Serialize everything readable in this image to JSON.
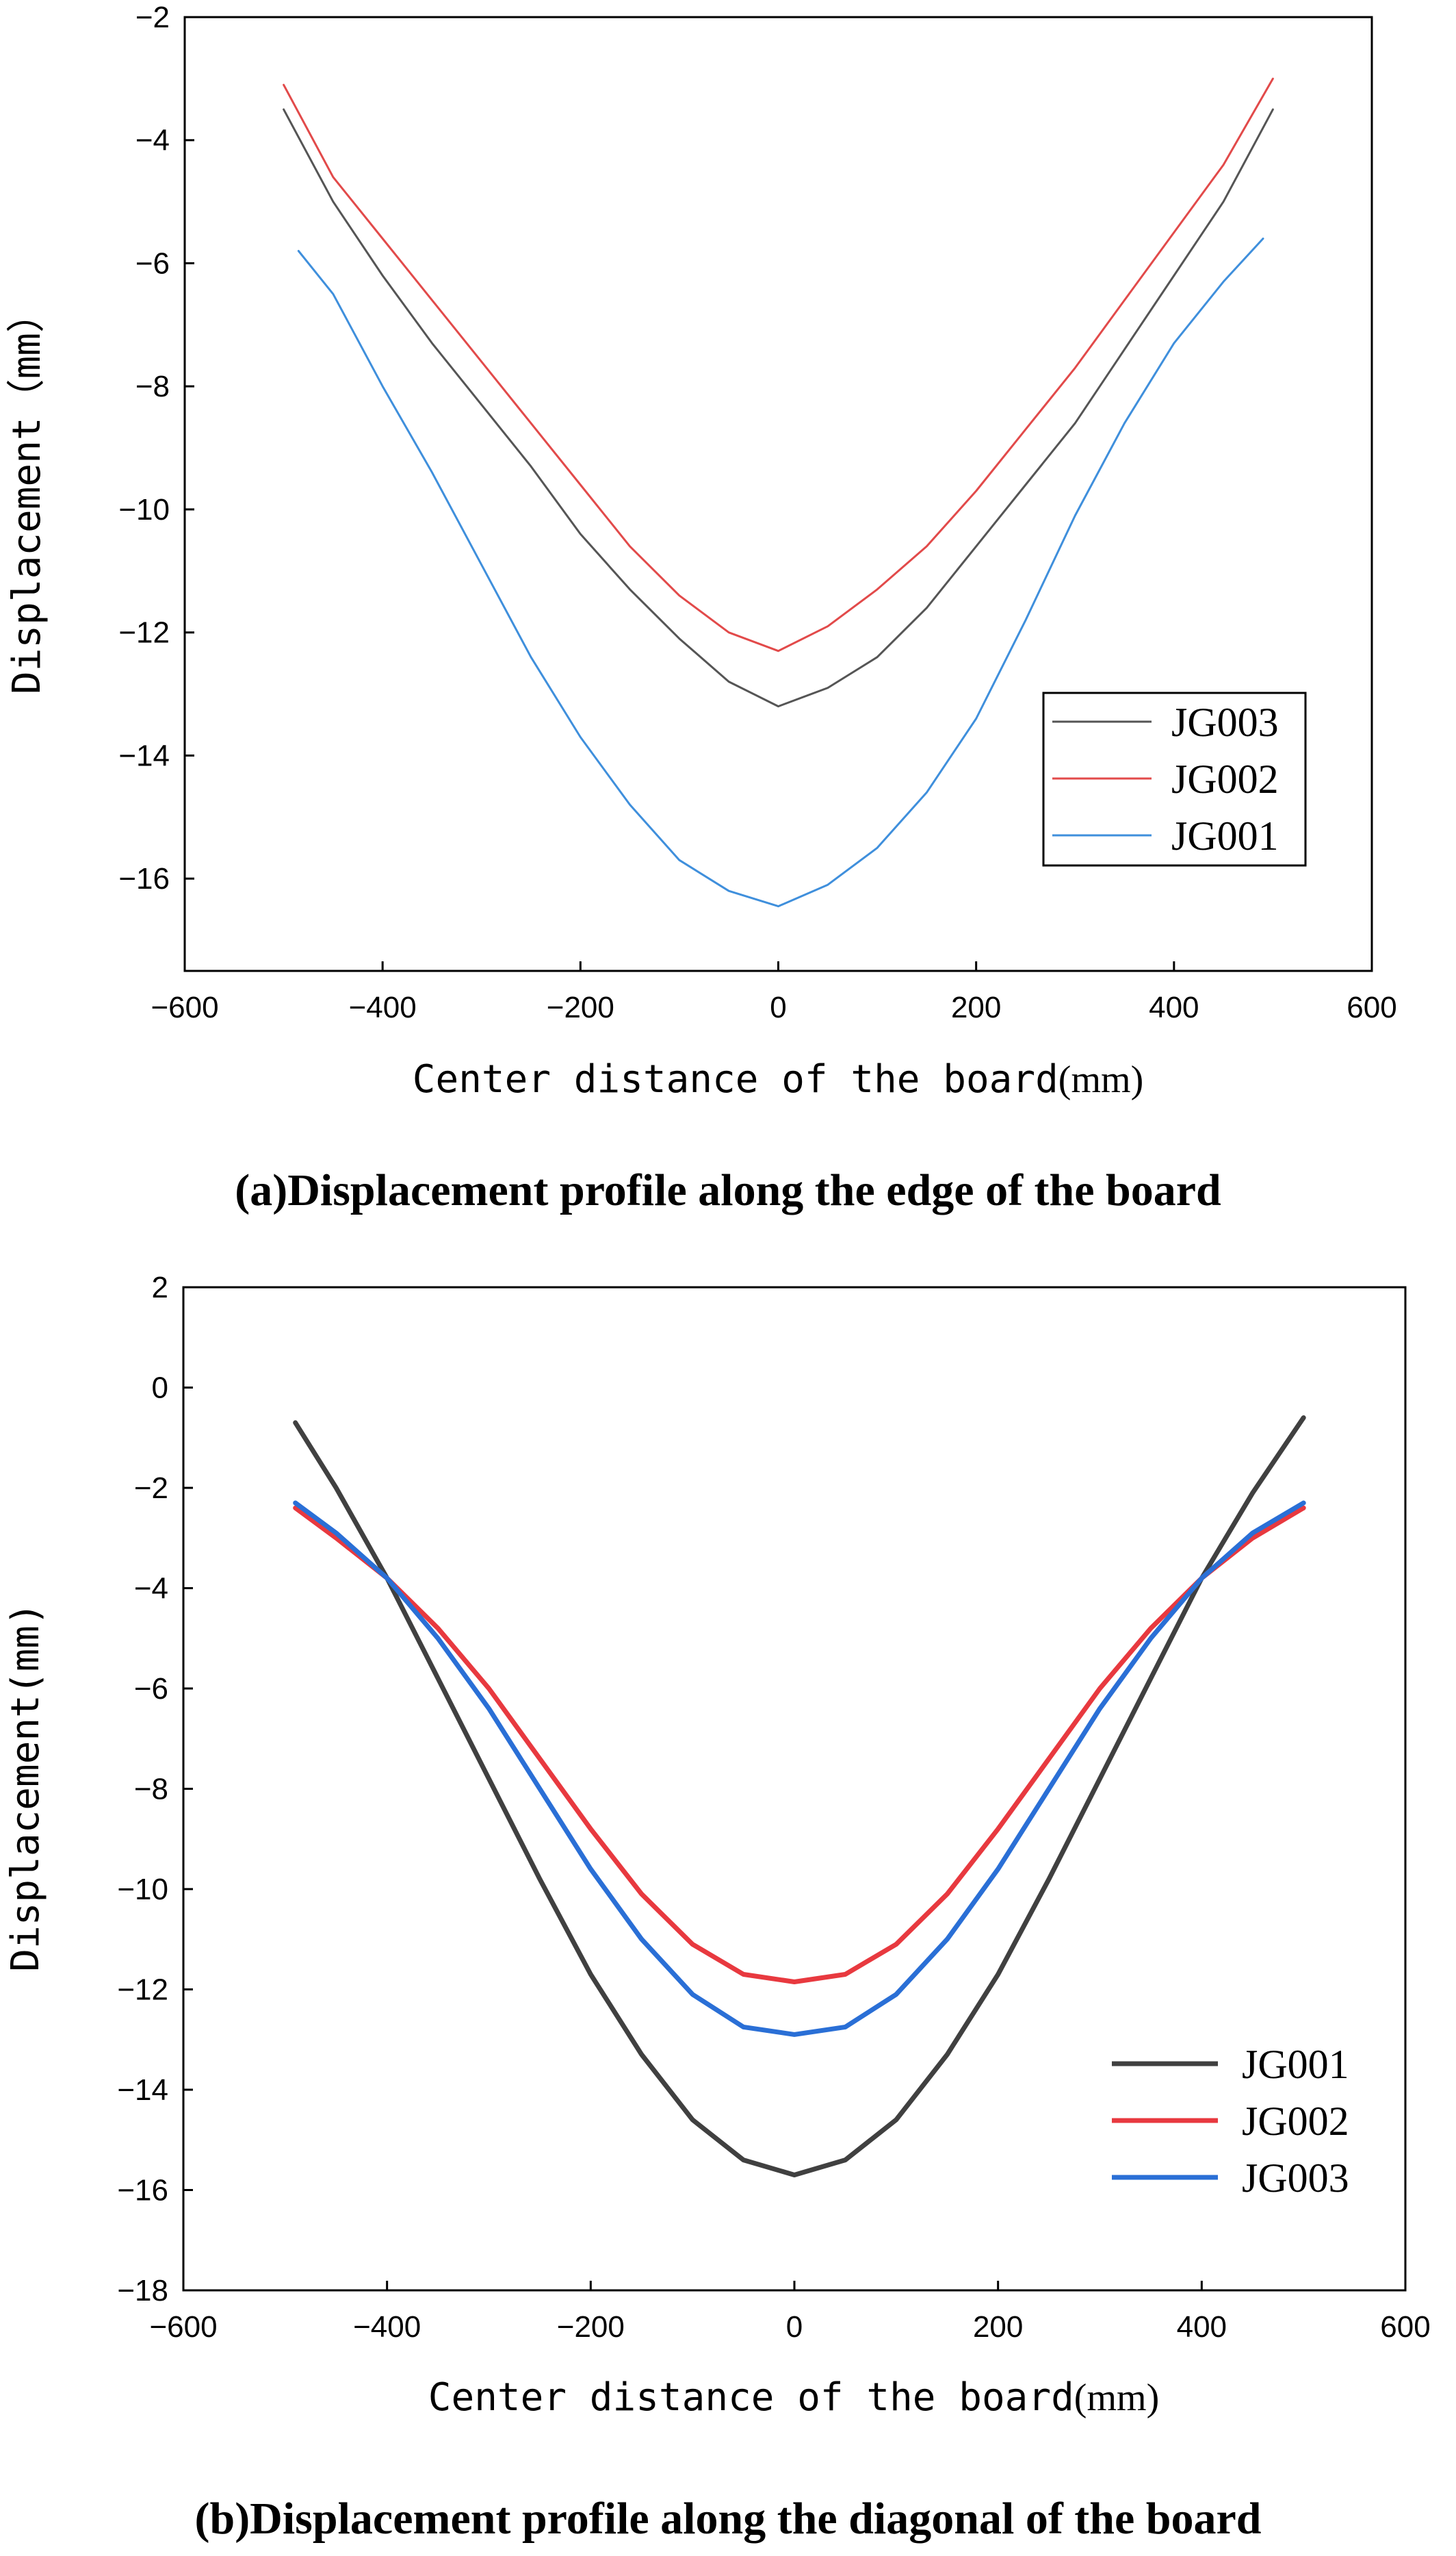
{
  "chart_data": [
    {
      "type": "line",
      "caption": "(a)Displacement profile along the edge of the board",
      "xlabel": "Center distance of the board",
      "xlabel_unit": "(mm)",
      "ylabel": "Displacement（mm）",
      "xlim": [
        -600,
        600
      ],
      "ylim": [
        -17.5,
        -2
      ],
      "xticks": [
        -600,
        -400,
        -200,
        0,
        200,
        400,
        600
      ],
      "yticks": [
        -2,
        -4,
        -6,
        -8,
        -10,
        -12,
        -14,
        -16
      ],
      "grid": false,
      "legend_position": "bottom-right",
      "series": [
        {
          "name": "JG003",
          "color": "#555555",
          "x": [
            -500,
            -450,
            -400,
            -350,
            -300,
            -250,
            -200,
            -150,
            -100,
            -50,
            0,
            50,
            100,
            150,
            200,
            250,
            300,
            350,
            400,
            450,
            500
          ],
          "y": [
            -3.5,
            -5.0,
            -6.2,
            -7.3,
            -8.3,
            -9.3,
            -10.4,
            -11.3,
            -12.1,
            -12.8,
            -13.2,
            -12.9,
            -12.4,
            -11.6,
            -10.6,
            -9.6,
            -8.6,
            -7.4,
            -6.2,
            -5.0,
            -3.5
          ]
        },
        {
          "name": "JG002",
          "color": "#e24a4a",
          "x": [
            -500,
            -450,
            -400,
            -350,
            -300,
            -250,
            -200,
            -150,
            -100,
            -50,
            0,
            50,
            100,
            150,
            200,
            250,
            300,
            350,
            400,
            450,
            500
          ],
          "y": [
            -3.1,
            -4.6,
            -5.6,
            -6.6,
            -7.6,
            -8.6,
            -9.6,
            -10.6,
            -11.4,
            -12.0,
            -12.3,
            -11.9,
            -11.3,
            -10.6,
            -9.7,
            -8.7,
            -7.7,
            -6.6,
            -5.5,
            -4.4,
            -3.0
          ]
        },
        {
          "name": "JG001",
          "color": "#3f8fdc",
          "x": [
            -485,
            -450,
            -400,
            -350,
            -300,
            -250,
            -200,
            -150,
            -100,
            -50,
            0,
            50,
            100,
            150,
            200,
            250,
            300,
            350,
            400,
            450,
            490
          ],
          "y": [
            -5.8,
            -6.5,
            -8.0,
            -9.4,
            -10.9,
            -12.4,
            -13.7,
            -14.8,
            -15.7,
            -16.2,
            -16.45,
            -16.1,
            -15.5,
            -14.6,
            -13.4,
            -11.8,
            -10.1,
            -8.6,
            -7.3,
            -6.3,
            -5.6
          ]
        }
      ]
    },
    {
      "type": "line",
      "caption": "(b)Displacement profile along the diagonal of the board",
      "xlabel": "Center distance of the board",
      "xlabel_unit": "(mm)",
      "ylabel": "Displacement(mm)",
      "xlim": [
        -600,
        600
      ],
      "ylim": [
        -18,
        2
      ],
      "xticks": [
        -600,
        -400,
        -200,
        0,
        200,
        400,
        600
      ],
      "yticks": [
        2,
        0,
        -2,
        -4,
        -6,
        -8,
        -10,
        -12,
        -14,
        -16,
        -18
      ],
      "grid": false,
      "legend_position": "bottom-right",
      "series": [
        {
          "name": "JG001",
          "color": "#404040",
          "x": [
            -490,
            -450,
            -400,
            -350,
            -300,
            -250,
            -200,
            -150,
            -100,
            -50,
            0,
            50,
            100,
            150,
            200,
            250,
            300,
            350,
            400,
            450,
            500
          ],
          "y": [
            -0.7,
            -2.0,
            -3.8,
            -5.8,
            -7.8,
            -9.8,
            -11.7,
            -13.3,
            -14.6,
            -15.4,
            -15.7,
            -15.4,
            -14.6,
            -13.3,
            -11.7,
            -9.8,
            -7.8,
            -5.8,
            -3.8,
            -2.1,
            -0.6
          ]
        },
        {
          "name": "JG002",
          "color": "#e8393f",
          "x": [
            -490,
            -450,
            -400,
            -350,
            -300,
            -250,
            -200,
            -150,
            -100,
            -50,
            0,
            50,
            100,
            150,
            200,
            250,
            300,
            350,
            400,
            450,
            500
          ],
          "y": [
            -2.4,
            -3.0,
            -3.8,
            -4.8,
            -6.0,
            -7.4,
            -8.8,
            -10.1,
            -11.1,
            -11.7,
            -11.85,
            -11.7,
            -11.1,
            -10.1,
            -8.8,
            -7.4,
            -6.0,
            -4.8,
            -3.8,
            -3.0,
            -2.4
          ]
        },
        {
          "name": "JG003",
          "color": "#2a6fd6",
          "x": [
            -490,
            -450,
            -400,
            -350,
            -300,
            -250,
            -200,
            -150,
            -100,
            -50,
            0,
            50,
            100,
            150,
            200,
            250,
            300,
            350,
            400,
            450,
            500
          ],
          "y": [
            -2.3,
            -2.9,
            -3.8,
            -5.0,
            -6.4,
            -8.0,
            -9.6,
            -11.0,
            -12.1,
            -12.75,
            -12.9,
            -12.75,
            -12.1,
            -11.0,
            -9.6,
            -8.0,
            -6.4,
            -5.0,
            -3.8,
            -2.9,
            -2.3
          ]
        }
      ]
    }
  ]
}
